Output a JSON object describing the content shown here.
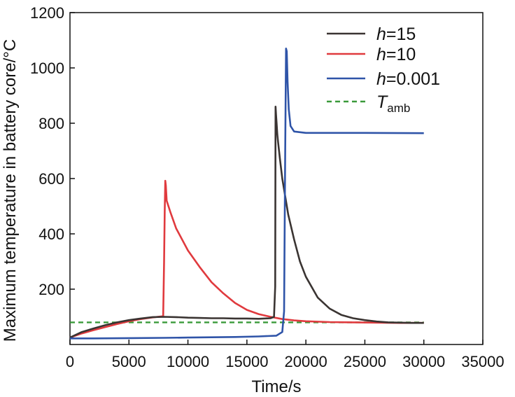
{
  "chart_data": {
    "type": "line",
    "title": "",
    "xlabel": "Time/s",
    "ylabel": "Maximum temperature in battery core/°C",
    "xlim": [
      0,
      35000
    ],
    "ylim": [
      0,
      1200
    ],
    "x_ticks": [
      0,
      5000,
      10000,
      15000,
      20000,
      25000,
      30000,
      35000
    ],
    "x_tick_labels": [
      "0",
      "5000",
      "10000",
      "15000",
      "20000",
      "25000",
      "30000",
      "35000"
    ],
    "y_ticks": [
      200,
      400,
      600,
      800,
      1000,
      1200
    ],
    "y_tick_labels": [
      "200",
      "400",
      "600",
      "800",
      "1000",
      "1200"
    ],
    "grid": false,
    "legend_position": "top-right",
    "series": [
      {
        "name": "h=15",
        "legend_var": "h",
        "legend_val": "=15",
        "color": "#3a3432",
        "style": "solid",
        "points": [
          [
            0,
            25
          ],
          [
            1000,
            45
          ],
          [
            2000,
            58
          ],
          [
            3000,
            70
          ],
          [
            4000,
            80
          ],
          [
            5000,
            88
          ],
          [
            6000,
            94
          ],
          [
            7000,
            99
          ],
          [
            8000,
            100
          ],
          [
            9000,
            99
          ],
          [
            10000,
            97
          ],
          [
            11000,
            96
          ],
          [
            12000,
            95
          ],
          [
            13000,
            95
          ],
          [
            14000,
            94
          ],
          [
            15000,
            94
          ],
          [
            16000,
            93
          ],
          [
            17000,
            95
          ],
          [
            17300,
            100
          ],
          [
            17400,
            210
          ],
          [
            17430,
            860
          ],
          [
            17470,
            830
          ],
          [
            17520,
            800
          ],
          [
            17580,
            760
          ],
          [
            17650,
            730
          ],
          [
            17800,
            670
          ],
          [
            18000,
            600
          ],
          [
            18500,
            470
          ],
          [
            19000,
            380
          ],
          [
            19500,
            300
          ],
          [
            20000,
            245
          ],
          [
            21000,
            170
          ],
          [
            22000,
            130
          ],
          [
            23000,
            107
          ],
          [
            24000,
            95
          ],
          [
            25000,
            88
          ],
          [
            26000,
            83
          ],
          [
            27000,
            80
          ],
          [
            28000,
            79
          ],
          [
            29000,
            78
          ],
          [
            30000,
            78
          ]
        ]
      },
      {
        "name": "h=10",
        "legend_var": "h",
        "legend_val": "=10",
        "color": "#e03a3e",
        "style": "solid",
        "points": [
          [
            0,
            25
          ],
          [
            1000,
            40
          ],
          [
            2000,
            52
          ],
          [
            3000,
            63
          ],
          [
            4000,
            74
          ],
          [
            5000,
            84
          ],
          [
            6000,
            92
          ],
          [
            7000,
            98
          ],
          [
            7900,
            102
          ],
          [
            7980,
            300
          ],
          [
            8030,
            480
          ],
          [
            8080,
            592
          ],
          [
            8130,
            575
          ],
          [
            8200,
            520
          ],
          [
            8500,
            480
          ],
          [
            9000,
            420
          ],
          [
            10000,
            340
          ],
          [
            11000,
            280
          ],
          [
            12000,
            225
          ],
          [
            13000,
            185
          ],
          [
            14000,
            150
          ],
          [
            15000,
            125
          ],
          [
            16000,
            110
          ],
          [
            17000,
            100
          ],
          [
            18000,
            92
          ],
          [
            19000,
            87
          ],
          [
            20000,
            84
          ],
          [
            22000,
            81
          ],
          [
            24000,
            80
          ],
          [
            26000,
            79
          ],
          [
            28000,
            78
          ],
          [
            30000,
            78
          ]
        ]
      },
      {
        "name": "h=0.001",
        "legend_var": "h",
        "legend_val": "=0.001",
        "color": "#2f54a8",
        "style": "solid",
        "points": [
          [
            0,
            22
          ],
          [
            2000,
            22
          ],
          [
            5000,
            23
          ],
          [
            8000,
            24
          ],
          [
            10000,
            25
          ],
          [
            12000,
            26
          ],
          [
            14000,
            27
          ],
          [
            16000,
            29
          ],
          [
            17500,
            32
          ],
          [
            18000,
            45
          ],
          [
            18150,
            120
          ],
          [
            18250,
            700
          ],
          [
            18320,
            1070
          ],
          [
            18380,
            1060
          ],
          [
            18450,
            950
          ],
          [
            18550,
            850
          ],
          [
            18700,
            790
          ],
          [
            19000,
            770
          ],
          [
            20000,
            765
          ],
          [
            25000,
            765
          ],
          [
            30000,
            764
          ]
        ]
      },
      {
        "name": "T_amb",
        "legend_var": "T",
        "legend_sub": "amb",
        "color": "#3a9a3a",
        "style": "dashed",
        "points": [
          [
            0,
            80
          ],
          [
            30000,
            80
          ]
        ]
      }
    ]
  }
}
